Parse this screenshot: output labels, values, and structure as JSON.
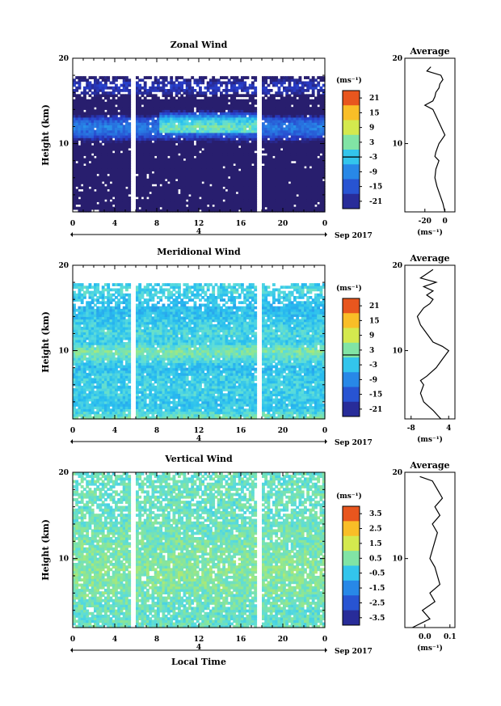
{
  "chart_data": [
    {
      "type": "heatmap",
      "title": "Zonal Wind",
      "ylabel": "Height (km)",
      "xlim": [
        0,
        24
      ],
      "ylim": [
        2,
        20
      ],
      "x_ticks": [
        "0",
        "4",
        "8",
        "12",
        "16",
        "20",
        "0"
      ],
      "y_ticks": [
        "10",
        "20"
      ],
      "date_tick": "4",
      "date_label": "Sep 2017",
      "colorbar": {
        "unit": "(ms⁻¹)",
        "ticks": [
          "21",
          "15",
          "9",
          "3",
          "-3",
          "-9",
          "-15",
          "-21"
        ],
        "range": [
          -24,
          24
        ],
        "zero_line": -3
      },
      "gaps": [
        [
          5.5,
          6.0
        ],
        [
          17.5,
          18.0
        ]
      ],
      "profile_rows": [
        [
          2,
          -28
        ],
        [
          3,
          -31
        ],
        [
          4,
          -33
        ],
        [
          5,
          -35
        ],
        [
          6,
          -37
        ],
        [
          7,
          -36
        ],
        [
          8,
          -35
        ],
        [
          9,
          -31
        ],
        [
          10,
          -28
        ],
        [
          11,
          -14
        ],
        [
          12,
          -10
        ],
        [
          13,
          -16
        ],
        [
          14,
          -38
        ],
        [
          15,
          -36
        ],
        [
          16,
          -20
        ],
        [
          17,
          -19
        ],
        [
          18,
          -27
        ],
        [
          19,
          -28
        ]
      ],
      "average": {
        "title": "Average",
        "xlabel": "(ms⁻¹)",
        "x_ticks": [
          "-20",
          "0"
        ],
        "xlim": [
          -40,
          10
        ],
        "y_ticks": [
          "10",
          "20"
        ],
        "profile": [
          [
            2,
            0
          ],
          [
            3,
            -2
          ],
          [
            4,
            -5
          ],
          [
            5,
            -8
          ],
          [
            6,
            -10
          ],
          [
            7,
            -9
          ],
          [
            8,
            -6
          ],
          [
            8.5,
            -10
          ],
          [
            9,
            -9
          ],
          [
            10,
            -6
          ],
          [
            11,
            0
          ],
          [
            11.5,
            -2
          ],
          [
            12,
            -4
          ],
          [
            13,
            -8
          ],
          [
            14,
            -12
          ],
          [
            14.5,
            -20
          ],
          [
            15,
            -12
          ],
          [
            15.5,
            -10
          ],
          [
            16,
            -9
          ],
          [
            16.5,
            -6
          ],
          [
            17,
            -5
          ],
          [
            17.5,
            -2
          ],
          [
            18,
            -4
          ],
          [
            18.5,
            -18
          ],
          [
            19,
            -14
          ]
        ]
      }
    },
    {
      "type": "heatmap",
      "title": "Meridional Wind",
      "ylabel": "Height (km)",
      "xlim": [
        0,
        24
      ],
      "ylim": [
        2,
        20
      ],
      "x_ticks": [
        "0",
        "4",
        "8",
        "12",
        "16",
        "20",
        "0"
      ],
      "y_ticks": [
        "10",
        "20"
      ],
      "date_tick": "4",
      "date_label": "Sep 2017",
      "colorbar": {
        "unit": "(ms⁻¹)",
        "ticks": [
          "21",
          "15",
          "9",
          "3",
          "-3",
          "-9",
          "-15",
          "-21"
        ],
        "range": [
          -24,
          24
        ],
        "zero_line": 1
      },
      "gaps": [
        [
          5.5,
          6.0
        ],
        [
          17.5,
          18.0
        ]
      ],
      "profile_rows": [
        [
          2,
          3
        ],
        [
          3,
          -2
        ],
        [
          4,
          -3
        ],
        [
          5,
          -2
        ],
        [
          6,
          -2
        ],
        [
          7,
          -2
        ],
        [
          8,
          -4
        ],
        [
          9,
          0
        ],
        [
          10,
          3
        ],
        [
          11,
          -2
        ],
        [
          12,
          -1
        ],
        [
          13,
          -2
        ],
        [
          14,
          -3
        ],
        [
          15,
          -4
        ],
        [
          16,
          -3
        ],
        [
          17,
          -1
        ],
        [
          18,
          -2
        ],
        [
          19,
          -3
        ]
      ],
      "average": {
        "title": "Average",
        "xlabel": "(ms⁻¹)",
        "x_ticks": [
          "-8",
          "4"
        ],
        "xlim": [
          -10,
          6
        ],
        "y_ticks": [
          "10",
          "20"
        ],
        "profile": [
          [
            2,
            1.5
          ],
          [
            3,
            -1
          ],
          [
            4,
            -4
          ],
          [
            5,
            -5
          ],
          [
            6,
            -4
          ],
          [
            6.5,
            -5
          ],
          [
            7,
            -3
          ],
          [
            8,
            0
          ],
          [
            9,
            2
          ],
          [
            10,
            4
          ],
          [
            10.5,
            2
          ],
          [
            11,
            -1
          ],
          [
            12,
            -3
          ],
          [
            13,
            -5
          ],
          [
            14,
            -6
          ],
          [
            15,
            -4
          ],
          [
            15.5,
            -2
          ],
          [
            16,
            -1
          ],
          [
            16.5,
            -3
          ],
          [
            17,
            -1
          ],
          [
            17.5,
            -4
          ],
          [
            18,
            0
          ],
          [
            18.5,
            -5
          ],
          [
            19,
            -3
          ],
          [
            19.5,
            -1
          ]
        ]
      }
    },
    {
      "type": "heatmap",
      "title": "Vertical Wind",
      "xlabel": "Local Time",
      "ylabel": "Height (km)",
      "xlim": [
        0,
        24
      ],
      "ylim": [
        2,
        20
      ],
      "x_ticks": [
        "0",
        "4",
        "8",
        "12",
        "16",
        "20",
        "0"
      ],
      "y_ticks": [
        "10",
        "20"
      ],
      "date_tick": "4",
      "date_label": "Sep 2017",
      "colorbar": {
        "unit": "(ms⁻¹)",
        "ticks": [
          "3.5",
          "2.5",
          "1.5",
          "0.5",
          "-0.5",
          "-1.5",
          "-2.5",
          "-3.5"
        ],
        "range": [
          -4,
          4
        ]
      },
      "gaps": [
        [
          5.5,
          6.0
        ],
        [
          17.5,
          18.0
        ]
      ],
      "profile_rows": [
        [
          2,
          0.2
        ],
        [
          4,
          0.2
        ],
        [
          6,
          0.4
        ],
        [
          8,
          0.6
        ],
        [
          10,
          0.5
        ],
        [
          12,
          0.4
        ],
        [
          14,
          0.3
        ],
        [
          16,
          0.2
        ],
        [
          18,
          0.3
        ],
        [
          19,
          0.2
        ]
      ],
      "average": {
        "title": "Average",
        "xlabel": "(ms⁻¹)",
        "x_ticks": [
          "0.0",
          "0.1"
        ],
        "xlim": [
          -0.08,
          0.12
        ],
        "y_ticks": [
          "10",
          "20"
        ],
        "profile": [
          [
            2,
            -0.05
          ],
          [
            3,
            0.02
          ],
          [
            4,
            -0.01
          ],
          [
            5,
            0.04
          ],
          [
            6,
            0.02
          ],
          [
            7,
            0.06
          ],
          [
            8,
            0.05
          ],
          [
            9,
            0.04
          ],
          [
            10,
            0.02
          ],
          [
            11,
            0.03
          ],
          [
            12,
            0.04
          ],
          [
            13,
            0.05
          ],
          [
            14,
            0.03
          ],
          [
            15,
            0.06
          ],
          [
            16,
            0.04
          ],
          [
            17,
            0.07
          ],
          [
            18,
            0.05
          ],
          [
            19,
            0.03
          ],
          [
            19.5,
            -0.02
          ]
        ]
      }
    }
  ]
}
